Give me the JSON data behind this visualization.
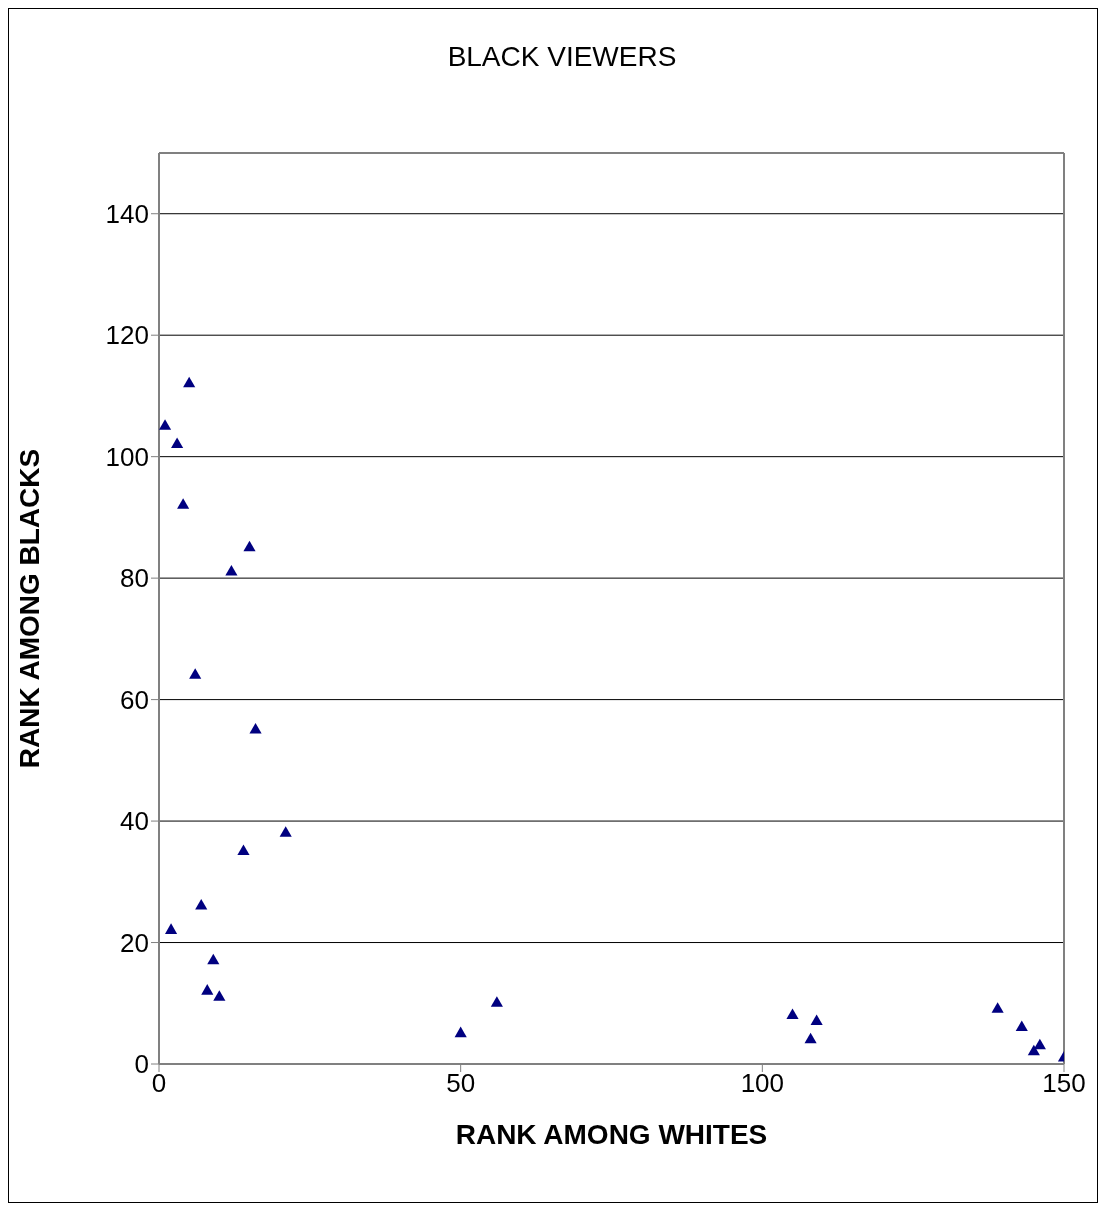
{
  "chart_data": {
    "type": "scatter",
    "title": "BLACK VIEWERS",
    "xlabel": "RANK AMONG WHITES",
    "ylabel": "RANK AMONG BLACKS",
    "series": [
      {
        "color": "#000080",
        "x": [
          1,
          5,
          3,
          4,
          15,
          12,
          6,
          16,
          21,
          14,
          7,
          2,
          9,
          8,
          10,
          50,
          56,
          105,
          109,
          108,
          139,
          143,
          145,
          146,
          150
        ],
        "values": [
          105,
          112,
          102,
          92,
          85,
          81,
          64,
          55,
          38,
          35,
          26,
          22,
          17,
          12,
          11,
          5,
          10,
          8,
          7,
          4,
          9,
          6,
          2,
          3,
          1
        ]
      }
    ],
    "xlim": [
      0,
      150
    ],
    "xticks": [
      0,
      50,
      100,
      150
    ],
    "ylim": [
      0,
      150
    ],
    "yticks": [
      0,
      20,
      40,
      60,
      80,
      100,
      120,
      140
    ],
    "grid": "y",
    "marker": "triangle"
  }
}
